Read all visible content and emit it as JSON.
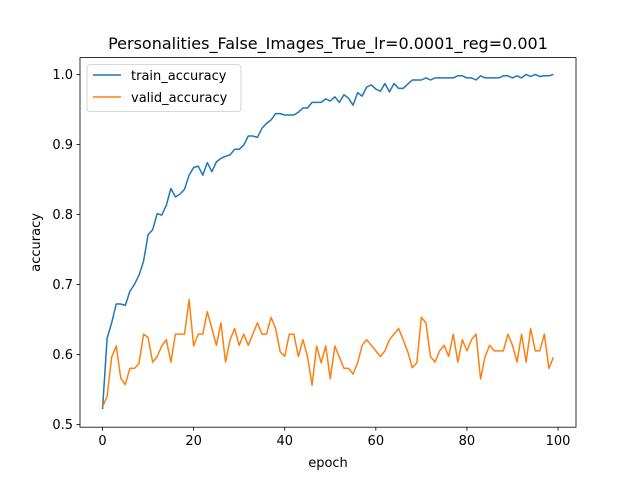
{
  "chart_data": {
    "type": "line",
    "title": "Personalities_False_Images_True_lr=0.0001_reg=0.001",
    "xlabel": "epoch",
    "ylabel": "accuracy",
    "xlim": [
      -4.95,
      103.95
    ],
    "ylim": [
      0.496,
      1.024
    ],
    "xticks": [
      0,
      20,
      40,
      60,
      80,
      100
    ],
    "yticks": [
      0.5,
      0.6,
      0.7,
      0.8,
      0.9,
      1.0
    ],
    "ytick_labels": [
      "0.5",
      "0.6",
      "0.7",
      "0.8",
      "0.9",
      "1.0"
    ],
    "grid": false,
    "legend_position": "upper-left",
    "x": [
      0,
      1,
      2,
      3,
      4,
      5,
      6,
      7,
      8,
      9,
      10,
      11,
      12,
      13,
      14,
      15,
      16,
      17,
      18,
      19,
      20,
      21,
      22,
      23,
      24,
      25,
      26,
      27,
      28,
      29,
      30,
      31,
      32,
      33,
      34,
      35,
      36,
      37,
      38,
      39,
      40,
      41,
      42,
      43,
      44,
      45,
      46,
      47,
      48,
      49,
      50,
      51,
      52,
      53,
      54,
      55,
      56,
      57,
      58,
      59,
      60,
      61,
      62,
      63,
      64,
      65,
      66,
      67,
      68,
      69,
      70,
      71,
      72,
      73,
      74,
      75,
      76,
      77,
      78,
      79,
      80,
      81,
      82,
      83,
      84,
      85,
      86,
      87,
      88,
      89,
      90,
      91,
      92,
      93,
      94,
      95,
      96,
      97,
      98,
      99
    ],
    "series": [
      {
        "name": "train_accuracy",
        "color": "#1f77b4",
        "values": [
          0.522,
          0.623,
          0.645,
          0.672,
          0.672,
          0.67,
          0.69,
          0.7,
          0.713,
          0.733,
          0.771,
          0.778,
          0.801,
          0.799,
          0.813,
          0.837,
          0.825,
          0.829,
          0.836,
          0.856,
          0.867,
          0.869,
          0.856,
          0.874,
          0.861,
          0.875,
          0.88,
          0.883,
          0.885,
          0.893,
          0.893,
          0.899,
          0.912,
          0.912,
          0.91,
          0.923,
          0.93,
          0.935,
          0.944,
          0.944,
          0.942,
          0.942,
          0.942,
          0.946,
          0.952,
          0.952,
          0.96,
          0.96,
          0.96,
          0.965,
          0.962,
          0.968,
          0.96,
          0.971,
          0.966,
          0.956,
          0.974,
          0.969,
          0.982,
          0.985,
          0.979,
          0.976,
          0.987,
          0.975,
          0.987,
          0.98,
          0.98,
          0.986,
          0.992,
          0.992,
          0.992,
          0.995,
          0.992,
          0.995,
          0.995,
          0.995,
          0.995,
          0.995,
          0.998,
          0.998,
          0.995,
          0.995,
          0.992,
          0.998,
          0.995,
          0.995,
          0.995,
          0.995,
          0.998,
          0.998,
          0.995,
          0.998,
          0.995,
          1.0,
          0.997,
          1.0,
          0.997,
          0.998,
          0.998,
          1.0
        ]
      },
      {
        "name": "valid_accuracy",
        "color": "#ff7f0e",
        "values": [
          0.525,
          0.54,
          0.596,
          0.612,
          0.566,
          0.557,
          0.58,
          0.58,
          0.587,
          0.629,
          0.624,
          0.589,
          0.597,
          0.612,
          0.621,
          0.589,
          0.629,
          0.629,
          0.629,
          0.678,
          0.612,
          0.629,
          0.629,
          0.661,
          0.637,
          0.613,
          0.645,
          0.589,
          0.621,
          0.637,
          0.613,
          0.629,
          0.613,
          0.629,
          0.645,
          0.629,
          0.629,
          0.653,
          0.637,
          0.604,
          0.597,
          0.629,
          0.629,
          0.597,
          0.621,
          0.597,
          0.556,
          0.612,
          0.588,
          0.612,
          0.565,
          0.612,
          0.596,
          0.58,
          0.58,
          0.572,
          0.588,
          0.613,
          0.621,
          0.613,
          0.605,
          0.597,
          0.605,
          0.621,
          0.629,
          0.637,
          0.621,
          0.604,
          0.581,
          0.588,
          0.653,
          0.645,
          0.597,
          0.589,
          0.605,
          0.613,
          0.597,
          0.629,
          0.589,
          0.621,
          0.605,
          0.621,
          0.629,
          0.565,
          0.597,
          0.613,
          0.605,
          0.605,
          0.605,
          0.629,
          0.613,
          0.589,
          0.629,
          0.589,
          0.637,
          0.605,
          0.605,
          0.629,
          0.58,
          0.596
        ]
      }
    ]
  }
}
